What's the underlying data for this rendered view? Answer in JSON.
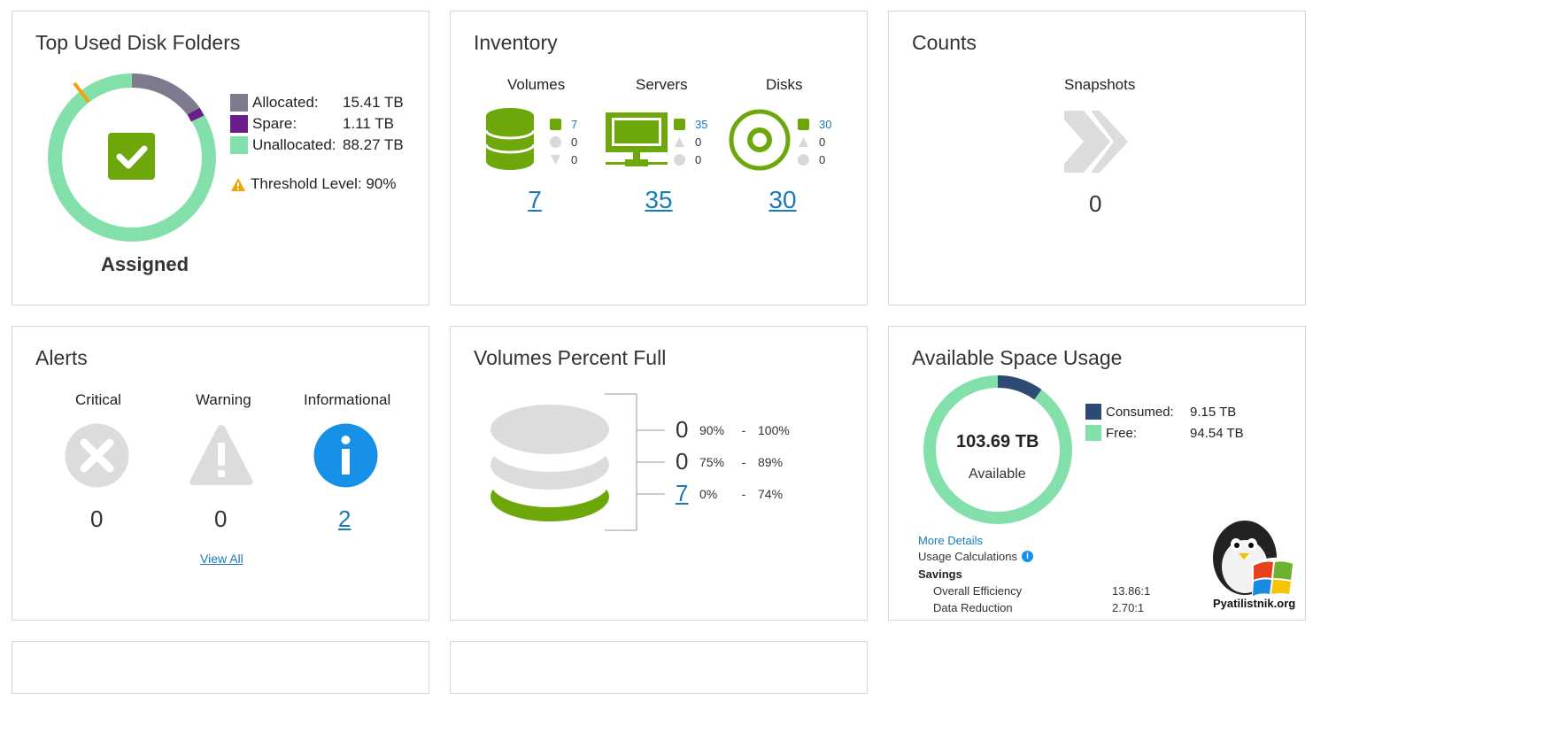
{
  "colors": {
    "green": "#6da70a",
    "mint": "#84e0ab",
    "gray": "#7e7b8f",
    "purple": "#6a1e8c",
    "navy": "#2e4b74",
    "link": "#1a7ab8",
    "amber": "#f0a30a",
    "icon_gray": "#dcdcdc",
    "info_blue": "#1790e8"
  },
  "top_used": {
    "title": "Top Used Disk Folders",
    "center_label": "Assigned",
    "legend": [
      {
        "label": "Allocated:",
        "value": "15.41 TB",
        "color": "#7e7b8f"
      },
      {
        "label": "Spare:",
        "value": "1.11 TB",
        "color": "#6a1e8c"
      },
      {
        "label": "Unallocated:",
        "value": "88.27 TB",
        "color": "#84e0ab"
      }
    ],
    "threshold": "Threshold Level: 90%",
    "icons": [
      "check-icon",
      "warning-icon"
    ]
  },
  "inventory": {
    "title": "Inventory",
    "columns": [
      {
        "name": "Volumes",
        "icon": "database-icon",
        "stats": [
          "7",
          "0",
          "0"
        ],
        "total": "7"
      },
      {
        "name": "Servers",
        "icon": "monitor-icon",
        "stats": [
          "35",
          "0",
          "0"
        ],
        "total": "35"
      },
      {
        "name": "Disks",
        "icon": "disk-icon",
        "stats": [
          "30",
          "0",
          "0"
        ],
        "total": "30"
      }
    ]
  },
  "counts": {
    "title": "Counts",
    "label": "Snapshots",
    "value": "0",
    "icon": "fast-forward-icon"
  },
  "alerts": {
    "title": "Alerts",
    "items": [
      {
        "label": "Critical",
        "value": "0",
        "icon": "error-icon"
      },
      {
        "label": "Warning",
        "value": "0",
        "icon": "warning-icon"
      },
      {
        "label": "Informational",
        "value": "2",
        "icon": "info-icon"
      }
    ],
    "view_all": "View All"
  },
  "volumes_full": {
    "title": "Volumes Percent Full",
    "rows": [
      {
        "count": "0",
        "from": "90%",
        "sep": "-",
        "to": "100%"
      },
      {
        "count": "0",
        "from": "75%",
        "sep": "-",
        "to": "89%"
      },
      {
        "count": "7",
        "from": "0%",
        "sep": "-",
        "to": "74%"
      }
    ]
  },
  "available": {
    "title": "Available Space Usage",
    "center_value": "103.69 TB",
    "center_label": "Available",
    "legend": [
      {
        "label": "Consumed:",
        "value": "9.15 TB",
        "color": "#2e4b74"
      },
      {
        "label": "Free:",
        "value": "94.54 TB",
        "color": "#84e0ab"
      }
    ],
    "more_details": "More Details",
    "usage_calc": "Usage Calculations",
    "savings": "Savings",
    "metrics": [
      {
        "label": "Overall Efficiency",
        "value": "13.86:1"
      },
      {
        "label": "Data Reduction",
        "value": "2.70:1"
      }
    ]
  },
  "watermark": "Pyatilistnik.org"
}
